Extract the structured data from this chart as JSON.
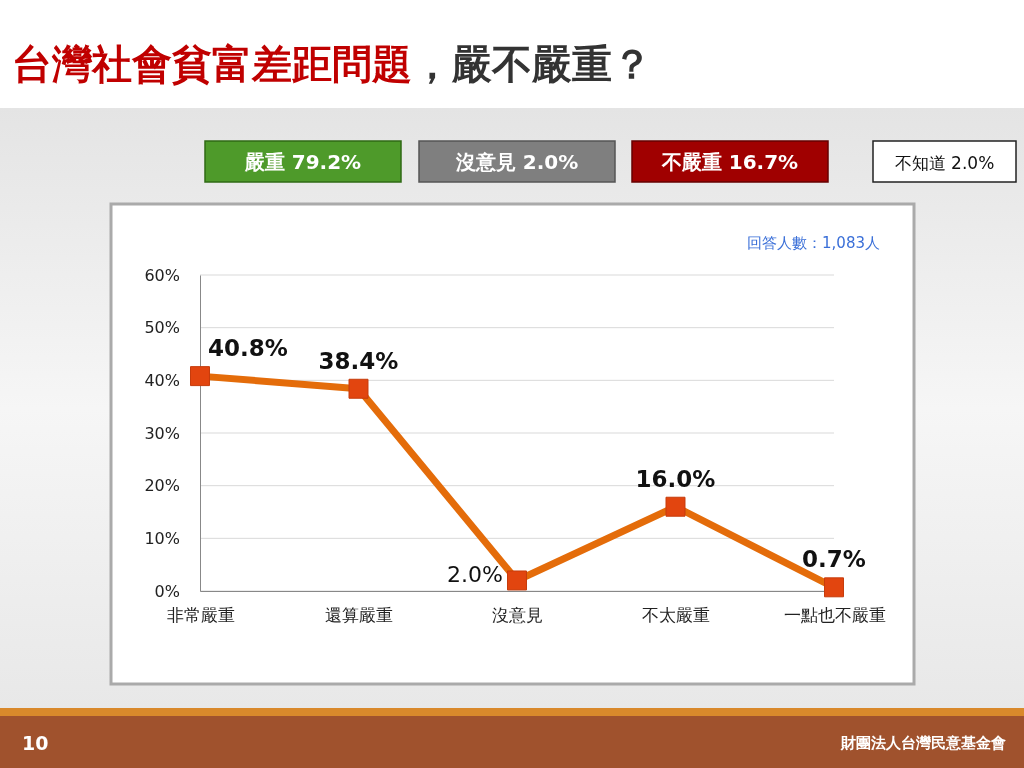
{
  "chart_data": {
    "type": "line",
    "title": "台灣社會貧富差距問題",
    "subtitle": "，嚴不嚴重？",
    "categories": [
      "非常嚴重",
      "還算嚴重",
      "沒意見",
      "不太嚴重",
      "一點也不嚴重"
    ],
    "series": [
      {
        "color": "#e46c0a",
        "values": [
          40.8,
          38.4,
          2.0,
          16.0,
          0.7
        ],
        "value_labels": [
          "40.8%",
          "38.4%",
          "2.0%",
          "16.0%",
          "0.7%"
        ]
      }
    ],
    "ylim": [
      0,
      60
    ],
    "yticks": [
      {
        "value": 0,
        "label": "0%"
      },
      {
        "value": 10,
        "label": "10%"
      },
      {
        "value": 20,
        "label": "20%"
      },
      {
        "value": 30,
        "label": "30%"
      },
      {
        "value": 40,
        "label": "40%"
      },
      {
        "value": 50,
        "label": "50%"
      },
      {
        "value": 60,
        "label": "60%"
      }
    ],
    "grid": "y",
    "marker": "square",
    "line_style": "solid",
    "annotations": [
      "嚴重 79.2%",
      "沒意見 2.0%",
      "不嚴重 16.7%",
      "不知道 2.0%",
      "回答人數：1,083人",
      "10",
      "財團法人台灣民意基金會"
    ]
  }
}
